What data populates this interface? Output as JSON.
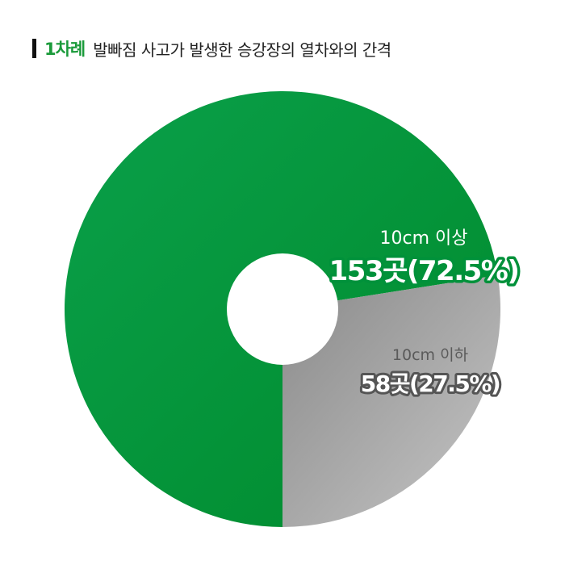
{
  "header": {
    "tag": "1차례",
    "title": "발빠짐 사고가 발생한 승강장의 열차와의 간격"
  },
  "colors": {
    "green": "#00913a",
    "green_light": "#0da248",
    "gray": "#b4b4b4",
    "gray_dark": "#8e8e8e",
    "title_green": "#1a9a3a"
  },
  "chart_data": {
    "type": "pie",
    "style": "donut",
    "slices": [
      {
        "name": "10cm 이상",
        "value": 153,
        "unit": "곳",
        "percent": 72.5,
        "label": "153곳(72.5%)"
      },
      {
        "name": "10cm 이하",
        "value": 58,
        "unit": "곳",
        "percent": 27.5,
        "label": "58곳(27.5%)"
      }
    ]
  }
}
